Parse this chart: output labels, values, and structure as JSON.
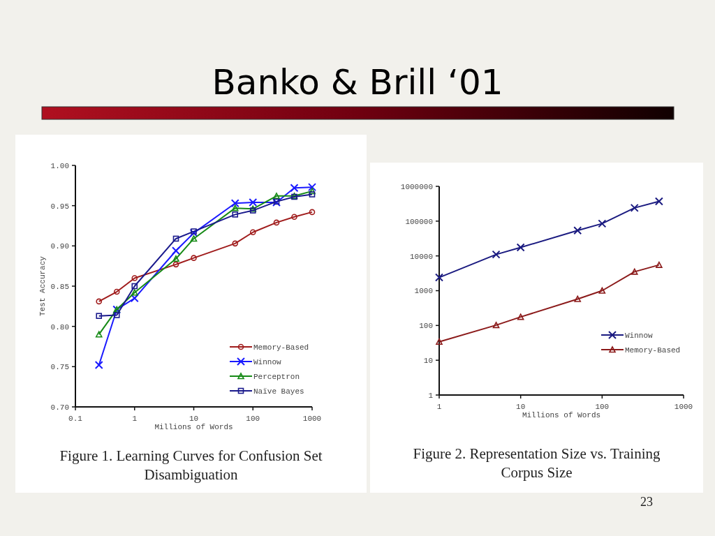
{
  "chart_data": [
    {
      "type": "other",
      "title": "Banko & Brill ‘01",
      "annotations": [
        "23"
      ]
    },
    {
      "type": "line",
      "xlabel": "Millions of Words",
      "ylabel": "Test Accuracy",
      "log": "x",
      "xlim": [
        0.1,
        1000
      ],
      "ylim": [
        0.7,
        1.0
      ],
      "xticks": [
        0.1,
        1,
        10,
        100,
        1000
      ],
      "yticks": [
        {
          "value": 0.7,
          "label": "0.70"
        },
        {
          "value": 0.75,
          "label": "0.75"
        },
        {
          "value": 0.8,
          "label": "0.80"
        },
        {
          "value": 0.85,
          "label": "0.85"
        },
        {
          "value": 0.9,
          "label": "0.90"
        },
        {
          "value": 0.95,
          "label": "0.95"
        },
        {
          "value": 1.0,
          "label": "1.00"
        }
      ],
      "x": [
        0.25,
        0.5,
        1,
        5,
        10,
        50,
        100,
        250,
        500,
        1000
      ],
      "legend": "bottom right",
      "series": [
        {
          "name": "Memory-Based",
          "color": "#a01c1c",
          "marker": "circle",
          "values": [
            0.831,
            0.843,
            0.86,
            0.877,
            0.885,
            0.903,
            0.917,
            0.929,
            0.936,
            0.942
          ]
        },
        {
          "name": "Winnow",
          "color": "#1a1aff",
          "marker": "cross",
          "values": [
            0.752,
            0.821,
            0.835,
            0.894,
            0.916,
            0.953,
            0.954,
            0.954,
            0.972,
            0.973
          ]
        },
        {
          "name": "Perceptron",
          "color": "#168a16",
          "marker": "triangle",
          "values": [
            0.79,
            0.821,
            0.842,
            0.884,
            0.909,
            0.947,
            0.946,
            0.962,
            0.962,
            0.968
          ]
        },
        {
          "name": "Naïve Bayes",
          "color": "#1a1a8c",
          "marker": "square",
          "values": [
            0.813,
            0.814,
            0.85,
            0.909,
            0.918,
            0.939,
            0.944,
            0.955,
            0.961,
            0.964
          ]
        }
      ],
      "annotations": [
        "Figure 1. Learning Curves for Confusion Set Disambiguation"
      ]
    },
    {
      "type": "line",
      "xlabel": "Millions of Words",
      "log": "xy",
      "xlim": [
        1,
        1000
      ],
      "ylim": [
        1,
        1000000
      ],
      "xticks": [
        1,
        10,
        100,
        1000
      ],
      "yticks": [
        1,
        10,
        100,
        1000,
        10000,
        100000,
        1000000
      ],
      "x": [
        1,
        5,
        10,
        50,
        100,
        250,
        500
      ],
      "legend": "bottom right",
      "series": [
        {
          "name": "Winnow",
          "color": "#1a1a80",
          "marker": "cross",
          "values": [
            2400,
            11000,
            17500,
            54000,
            85000,
            240000,
            370000
          ]
        },
        {
          "name": "Memory-Based",
          "color": "#8b1a1a",
          "marker": "triangle",
          "values": [
            34,
            102,
            176,
            575,
            1000,
            3500,
            5500
          ]
        }
      ],
      "annotations": [
        "Figure 2. Representation Size vs. Training Corpus Size"
      ]
    }
  ]
}
